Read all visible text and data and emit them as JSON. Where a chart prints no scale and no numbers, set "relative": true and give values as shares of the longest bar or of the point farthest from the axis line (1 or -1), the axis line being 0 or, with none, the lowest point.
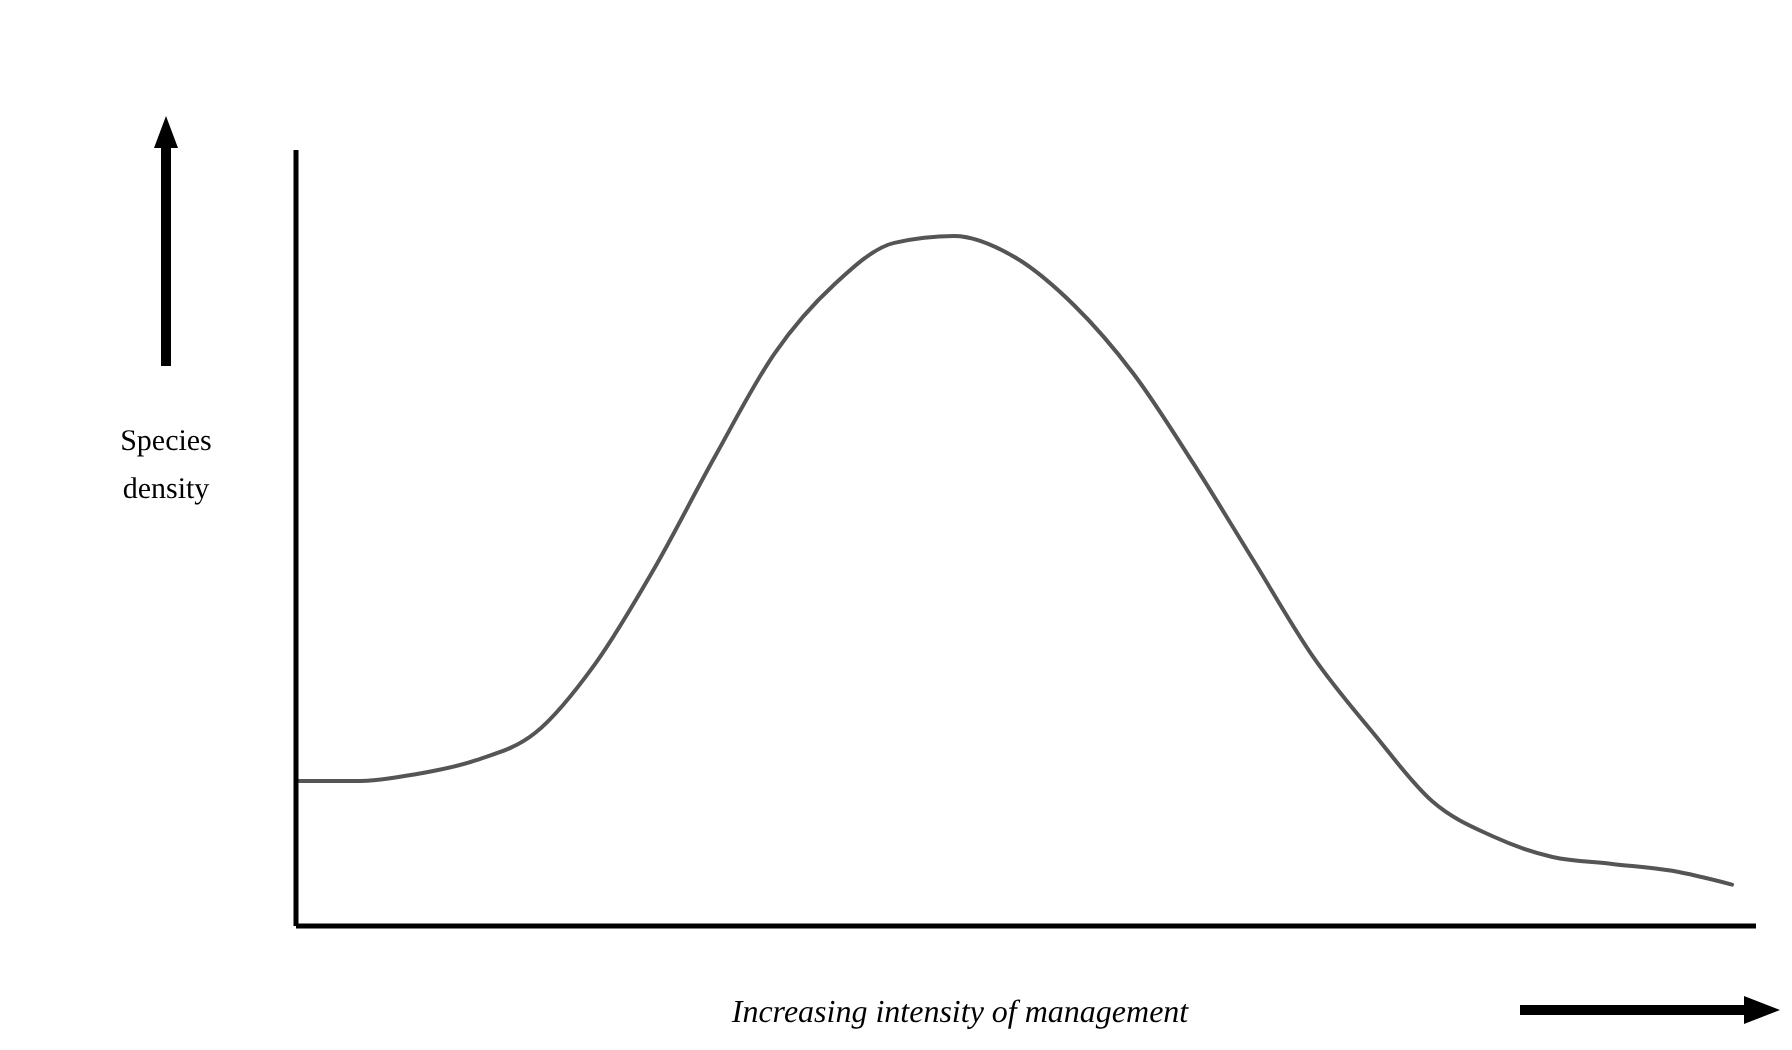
{
  "chart_data": {
    "type": "line",
    "relative": true,
    "xlabel": "Increasing intensity of management",
    "ylabel": "Species density",
    "categories": [
      null,
      null,
      null,
      null,
      null,
      null,
      null,
      null,
      null,
      null,
      null,
      null,
      null,
      null,
      null,
      null,
      null,
      null,
      null,
      null,
      null,
      null,
      null,
      null,
      null
    ],
    "series": [
      {
        "color": "#555555",
        "values": [
          0.21,
          0.21,
          0.22,
          0.24,
          0.28,
          0.38,
          0.52,
          0.68,
          0.83,
          0.93,
          0.99,
          1.0,
          0.97,
          0.9,
          0.8,
          0.67,
          0.53,
          0.39,
          0.28,
          0.18,
          0.13,
          0.1,
          0.09,
          0.08,
          0.06
        ]
      }
    ],
    "marker": "none",
    "line_style": "solid"
  }
}
